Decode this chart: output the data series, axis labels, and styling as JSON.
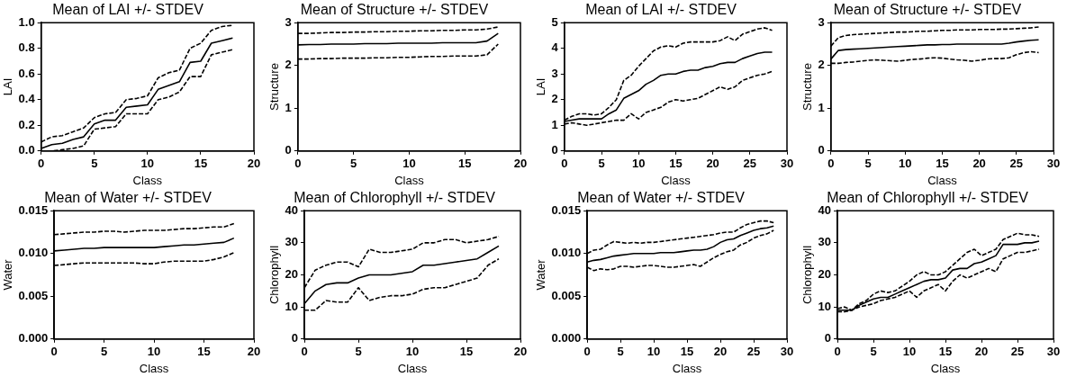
{
  "chart_data": [
    {
      "type": "line",
      "title": "Mean of LAI +/- STDEV",
      "xlabel": "Class",
      "ylabel": "LAI",
      "x": [
        0,
        1,
        2,
        3,
        4,
        5,
        6,
        7,
        8,
        9,
        10,
        11,
        12,
        13,
        14,
        15,
        16,
        17,
        18
      ],
      "xlim": [
        0,
        20
      ],
      "xticks": [
        0,
        5,
        10,
        15,
        20
      ],
      "ylim": [
        0,
        1
      ],
      "yticks": [
        {
          "value": 0,
          "label": "0.0"
        },
        {
          "value": 0.2,
          "label": "0.2"
        },
        {
          "value": 0.4,
          "label": "0.4"
        },
        {
          "value": 0.6,
          "label": "0.6"
        },
        {
          "value": 0.8,
          "label": "0.8"
        },
        {
          "value": 1,
          "label": "1.0"
        }
      ],
      "grid": false,
      "legend": false,
      "marker": "none",
      "series": [
        {
          "color": "#000000",
          "line_style": "solid",
          "values": [
            0.02,
            0.05,
            0.06,
            0.09,
            0.11,
            0.21,
            0.24,
            0.24,
            0.34,
            0.35,
            0.36,
            0.48,
            0.51,
            0.54,
            0.69,
            0.7,
            0.84,
            0.86,
            0.88
          ]
        },
        {
          "color": "#000000",
          "line_style": "dashed",
          "values": [
            0.07,
            0.11,
            0.12,
            0.15,
            0.18,
            0.26,
            0.29,
            0.3,
            0.4,
            0.41,
            0.43,
            0.57,
            0.61,
            0.63,
            0.8,
            0.84,
            0.94,
            0.97,
            0.98
          ]
        },
        {
          "color": "#000000",
          "line_style": "dashed",
          "values": [
            0,
            0,
            0.01,
            0.02,
            0.04,
            0.17,
            0.18,
            0.19,
            0.29,
            0.29,
            0.29,
            0.4,
            0.42,
            0.46,
            0.58,
            0.58,
            0.75,
            0.77,
            0.79
          ]
        }
      ]
    },
    {
      "type": "line",
      "title": "Mean of Structure +/- STDEV",
      "xlabel": "Class",
      "ylabel": "Structure",
      "x": [
        0,
        1,
        2,
        3,
        4,
        5,
        6,
        7,
        8,
        9,
        10,
        11,
        12,
        13,
        14,
        15,
        16,
        17,
        18
      ],
      "xlim": [
        0,
        20
      ],
      "xticks": [
        0,
        5,
        10,
        15,
        20
      ],
      "ylim": [
        0,
        3
      ],
      "yticks": [
        0,
        1,
        2,
        3
      ],
      "grid": false,
      "legend": false,
      "marker": "none",
      "series": [
        {
          "color": "#000000",
          "line_style": "solid",
          "values": [
            2.48,
            2.49,
            2.49,
            2.5,
            2.5,
            2.5,
            2.51,
            2.51,
            2.51,
            2.52,
            2.52,
            2.52,
            2.52,
            2.53,
            2.53,
            2.53,
            2.53,
            2.57,
            2.75
          ]
        },
        {
          "color": "#000000",
          "line_style": "dashed",
          "values": [
            2.75,
            2.75,
            2.76,
            2.77,
            2.77,
            2.78,
            2.78,
            2.79,
            2.79,
            2.8,
            2.8,
            2.81,
            2.81,
            2.82,
            2.82,
            2.83,
            2.83,
            2.85,
            2.9
          ]
        },
        {
          "color": "#000000",
          "line_style": "dashed",
          "values": [
            2.15,
            2.15,
            2.16,
            2.16,
            2.17,
            2.17,
            2.17,
            2.18,
            2.18,
            2.19,
            2.19,
            2.2,
            2.21,
            2.21,
            2.22,
            2.22,
            2.22,
            2.25,
            2.5
          ]
        }
      ]
    },
    {
      "type": "line",
      "title": "Mean of LAI +/- STDEV",
      "xlabel": "Class",
      "ylabel": "LAI",
      "x": [
        0,
        1,
        2,
        3,
        4,
        5,
        6,
        7,
        8,
        9,
        10,
        11,
        12,
        13,
        14,
        15,
        16,
        17,
        18,
        19,
        20,
        21,
        22,
        23,
        24,
        25,
        26,
        27,
        28
      ],
      "xlim": [
        0,
        30
      ],
      "xticks": [
        0,
        5,
        10,
        15,
        20,
        25,
        30
      ],
      "ylim": [
        0,
        5
      ],
      "yticks": [
        0,
        1,
        2,
        3,
        4,
        5
      ],
      "grid": false,
      "legend": false,
      "marker": "none",
      "series": [
        {
          "color": "#000000",
          "line_style": "solid",
          "values": [
            1.15,
            1.2,
            1.25,
            1.25,
            1.25,
            1.25,
            1.45,
            1.6,
            2.05,
            2.2,
            2.35,
            2.6,
            2.75,
            2.95,
            3,
            3,
            3.1,
            3.15,
            3.15,
            3.25,
            3.3,
            3.4,
            3.45,
            3.45,
            3.6,
            3.7,
            3.8,
            3.85,
            3.85
          ]
        },
        {
          "color": "#000000",
          "line_style": "dashed",
          "values": [
            1.2,
            1.35,
            1.45,
            1.45,
            1.4,
            1.45,
            1.7,
            2,
            2.75,
            2.95,
            3.3,
            3.6,
            3.9,
            4.05,
            4.1,
            4.05,
            4.2,
            4.25,
            4.25,
            4.25,
            4.25,
            4.3,
            4.45,
            4.3,
            4.55,
            4.65,
            4.75,
            4.8,
            4.7
          ]
        },
        {
          "color": "#000000",
          "line_style": "dashed",
          "values": [
            1.05,
            1.1,
            1.05,
            1,
            1.05,
            1.1,
            1.15,
            1.2,
            1.2,
            1.45,
            1.25,
            1.5,
            1.6,
            1.7,
            1.9,
            2,
            1.95,
            2,
            2.05,
            2.2,
            2.35,
            2.5,
            2.4,
            2.5,
            2.75,
            2.85,
            2.95,
            3,
            3.1
          ]
        }
      ]
    },
    {
      "type": "line",
      "title": "Mean of Structure +/- STDEV",
      "xlabel": "Class",
      "ylabel": "Structure",
      "x": [
        0,
        1,
        2,
        3,
        4,
        5,
        6,
        7,
        8,
        9,
        10,
        11,
        12,
        13,
        14,
        15,
        16,
        17,
        18,
        19,
        20,
        21,
        22,
        23,
        24,
        25,
        26,
        27,
        28
      ],
      "xlim": [
        0,
        30
      ],
      "xticks": [
        0,
        5,
        10,
        15,
        20,
        25,
        30
      ],
      "ylim": [
        0,
        3
      ],
      "yticks": [
        0,
        1,
        2,
        3
      ],
      "grid": false,
      "legend": false,
      "marker": "none",
      "series": [
        {
          "color": "#000000",
          "line_style": "solid",
          "values": [
            2.15,
            2.35,
            2.37,
            2.38,
            2.39,
            2.4,
            2.41,
            2.42,
            2.43,
            2.44,
            2.45,
            2.46,
            2.47,
            2.48,
            2.48,
            2.49,
            2.49,
            2.5,
            2.5,
            2.5,
            2.5,
            2.5,
            2.5,
            2.5,
            2.52,
            2.55,
            2.57,
            2.59,
            2.6
          ]
        },
        {
          "color": "#000000",
          "line_style": "dashed",
          "values": [
            2.45,
            2.65,
            2.7,
            2.72,
            2.73,
            2.74,
            2.75,
            2.76,
            2.77,
            2.78,
            2.78,
            2.79,
            2.8,
            2.8,
            2.81,
            2.82,
            2.82,
            2.83,
            2.83,
            2.83,
            2.84,
            2.84,
            2.84,
            2.85,
            2.85,
            2.86,
            2.87,
            2.88,
            2.9
          ]
        },
        {
          "color": "#000000",
          "line_style": "dashed",
          "values": [
            2.05,
            2.05,
            2.07,
            2.08,
            2.1,
            2.12,
            2.13,
            2.12,
            2.11,
            2.1,
            2.12,
            2.14,
            2.15,
            2.17,
            2.18,
            2.17,
            2.15,
            2.13,
            2.12,
            2.1,
            2.12,
            2.15,
            2.16,
            2.16,
            2.18,
            2.25,
            2.3,
            2.32,
            2.3
          ]
        }
      ]
    },
    {
      "type": "line",
      "title": "Mean of Water +/- STDEV",
      "xlabel": "Class",
      "ylabel": "Water",
      "x": [
        0,
        1,
        2,
        3,
        4,
        5,
        6,
        7,
        8,
        9,
        10,
        11,
        12,
        13,
        14,
        15,
        16,
        17,
        18
      ],
      "xlim": [
        0,
        20
      ],
      "xticks": [
        0,
        5,
        10,
        15,
        20
      ],
      "ylim": [
        0,
        0.015
      ],
      "yticks": [
        {
          "value": 0,
          "label": "0.000"
        },
        {
          "value": 0.005,
          "label": "0.005"
        },
        {
          "value": 0.01,
          "label": "0.010"
        },
        {
          "value": 0.015,
          "label": "0.015"
        }
      ],
      "grid": false,
      "legend": false,
      "marker": "none",
      "series": [
        {
          "color": "#000000",
          "line_style": "solid",
          "values": [
            0.0103,
            0.0104,
            0.0105,
            0.0106,
            0.0106,
            0.0107,
            0.0107,
            0.0107,
            0.0107,
            0.0107,
            0.0107,
            0.0108,
            0.0109,
            0.011,
            0.011,
            0.0111,
            0.0112,
            0.0113,
            0.0118
          ]
        },
        {
          "color": "#000000",
          "line_style": "dashed",
          "values": [
            0.0122,
            0.0123,
            0.0124,
            0.0125,
            0.0125,
            0.0126,
            0.0126,
            0.0125,
            0.0126,
            0.0127,
            0.0127,
            0.0127,
            0.0128,
            0.0129,
            0.0129,
            0.013,
            0.0131,
            0.0131,
            0.0135
          ]
        },
        {
          "color": "#000000",
          "line_style": "dashed",
          "values": [
            0.0086,
            0.0087,
            0.0088,
            0.0089,
            0.0089,
            0.0089,
            0.0089,
            0.0089,
            0.0089,
            0.0088,
            0.0088,
            0.009,
            0.0091,
            0.0091,
            0.0091,
            0.0091,
            0.0093,
            0.0096,
            0.0101
          ]
        }
      ]
    },
    {
      "type": "line",
      "title": "Mean of Chlorophyll +/- STDEV",
      "xlabel": "Class",
      "ylabel": "Chlorophyll",
      "x": [
        0,
        1,
        2,
        3,
        4,
        5,
        6,
        7,
        8,
        9,
        10,
        11,
        12,
        13,
        14,
        15,
        16,
        17,
        18
      ],
      "xlim": [
        0,
        20
      ],
      "xticks": [
        0,
        5,
        10,
        15,
        20
      ],
      "ylim": [
        0,
        40
      ],
      "yticks": [
        0,
        10,
        20,
        30,
        40
      ],
      "grid": false,
      "legend": false,
      "marker": "none",
      "series": [
        {
          "color": "#000000",
          "line_style": "solid",
          "values": [
            11,
            15,
            17,
            17.5,
            17.5,
            19,
            20,
            20,
            20,
            20.5,
            21,
            23,
            23,
            23.5,
            24,
            24.5,
            25,
            27,
            29
          ]
        },
        {
          "color": "#000000",
          "line_style": "dashed",
          "values": [
            16,
            21.5,
            23,
            24,
            24,
            22.5,
            28,
            27,
            27,
            27.5,
            28,
            30,
            30,
            31,
            31,
            30,
            30.5,
            31,
            32
          ]
        },
        {
          "color": "#000000",
          "line_style": "dashed",
          "values": [
            9,
            9,
            12,
            11.5,
            11.5,
            16,
            12,
            13,
            13.5,
            13.5,
            14,
            15.5,
            16,
            16,
            17,
            18,
            19,
            23,
            25
          ]
        }
      ]
    },
    {
      "type": "line",
      "title": "Mean of Water +/- STDEV",
      "xlabel": "Class",
      "ylabel": "Water",
      "x": [
        0,
        1,
        2,
        3,
        4,
        5,
        6,
        7,
        8,
        9,
        10,
        11,
        12,
        13,
        14,
        15,
        16,
        17,
        18,
        19,
        20,
        21,
        22,
        23,
        24,
        25,
        26,
        27,
        28
      ],
      "xlim": [
        0,
        30
      ],
      "xticks": [
        0,
        5,
        10,
        15,
        20,
        25,
        30
      ],
      "ylim": [
        0,
        0.015
      ],
      "yticks": [
        {
          "value": 0,
          "label": "0.000"
        },
        {
          "value": 0.005,
          "label": "0.005"
        },
        {
          "value": 0.01,
          "label": "0.010"
        },
        {
          "value": 0.015,
          "label": "0.015"
        }
      ],
      "grid": false,
      "legend": false,
      "marker": "none",
      "series": [
        {
          "color": "#000000",
          "line_style": "solid",
          "values": [
            0.009,
            0.0092,
            0.0093,
            0.0095,
            0.0097,
            0.0098,
            0.0099,
            0.01,
            0.01,
            0.01,
            0.01,
            0.0101,
            0.0101,
            0.0101,
            0.0102,
            0.0103,
            0.0104,
            0.0104,
            0.0105,
            0.0108,
            0.0113,
            0.0116,
            0.0117,
            0.0121,
            0.0124,
            0.0127,
            0.0129,
            0.013,
            0.0132
          ]
        },
        {
          "color": "#000000",
          "line_style": "dashed",
          "values": [
            0.01,
            0.0104,
            0.0105,
            0.011,
            0.0114,
            0.0113,
            0.0112,
            0.0113,
            0.0112,
            0.0113,
            0.0113,
            0.0114,
            0.0115,
            0.0116,
            0.0117,
            0.0118,
            0.0119,
            0.012,
            0.0121,
            0.0122,
            0.0124,
            0.0125,
            0.0125,
            0.013,
            0.0134,
            0.0136,
            0.0138,
            0.0138,
            0.0136
          ]
        },
        {
          "color": "#000000",
          "line_style": "dashed",
          "values": [
            0.0084,
            0.008,
            0.0082,
            0.0081,
            0.0082,
            0.0085,
            0.0085,
            0.0084,
            0.0085,
            0.0086,
            0.0086,
            0.0085,
            0.0084,
            0.0084,
            0.0085,
            0.0086,
            0.0087,
            0.0085,
            0.009,
            0.0095,
            0.0099,
            0.0102,
            0.0104,
            0.011,
            0.0113,
            0.0118,
            0.0121,
            0.0123,
            0.0127
          ]
        }
      ]
    },
    {
      "type": "line",
      "title": "Mean of Chlorophyll +/- STDEV",
      "xlabel": "Class",
      "ylabel": "Chlorophyll",
      "x": [
        0,
        1,
        2,
        3,
        4,
        5,
        6,
        7,
        8,
        9,
        10,
        11,
        12,
        13,
        14,
        15,
        16,
        17,
        18,
        19,
        20,
        21,
        22,
        23,
        24,
        25,
        26,
        27,
        28
      ],
      "xlim": [
        0,
        30
      ],
      "xticks": [
        0,
        5,
        10,
        15,
        20,
        25,
        30
      ],
      "ylim": [
        0,
        40
      ],
      "yticks": [
        0,
        10,
        20,
        30,
        40
      ],
      "grid": false,
      "legend": false,
      "marker": "none",
      "series": [
        {
          "color": "#000000",
          "line_style": "solid",
          "values": [
            9,
            9,
            9,
            10.5,
            11.5,
            12.5,
            13,
            13,
            14,
            15,
            16,
            17,
            18,
            18.5,
            18.5,
            19,
            21.5,
            22,
            22,
            23.5,
            24,
            25,
            26,
            29.5,
            29.5,
            29.5,
            30,
            30,
            30.5
          ]
        },
        {
          "color": "#000000",
          "line_style": "dashed",
          "values": [
            9.5,
            10,
            9,
            11,
            12,
            14,
            15,
            14.5,
            15,
            16.5,
            18,
            20,
            21,
            20,
            20,
            21,
            23,
            25,
            27,
            28,
            26,
            27,
            28,
            31,
            32,
            33,
            32.5,
            32.5,
            32
          ]
        },
        {
          "color": "#000000",
          "line_style": "dashed",
          "values": [
            8.5,
            8.5,
            9,
            10,
            10.5,
            11,
            12,
            12.5,
            13,
            14,
            15,
            13,
            15,
            16,
            17,
            15,
            18,
            20,
            19,
            20,
            21,
            22,
            21,
            25,
            26,
            27,
            27,
            27.5,
            28
          ]
        }
      ]
    }
  ]
}
